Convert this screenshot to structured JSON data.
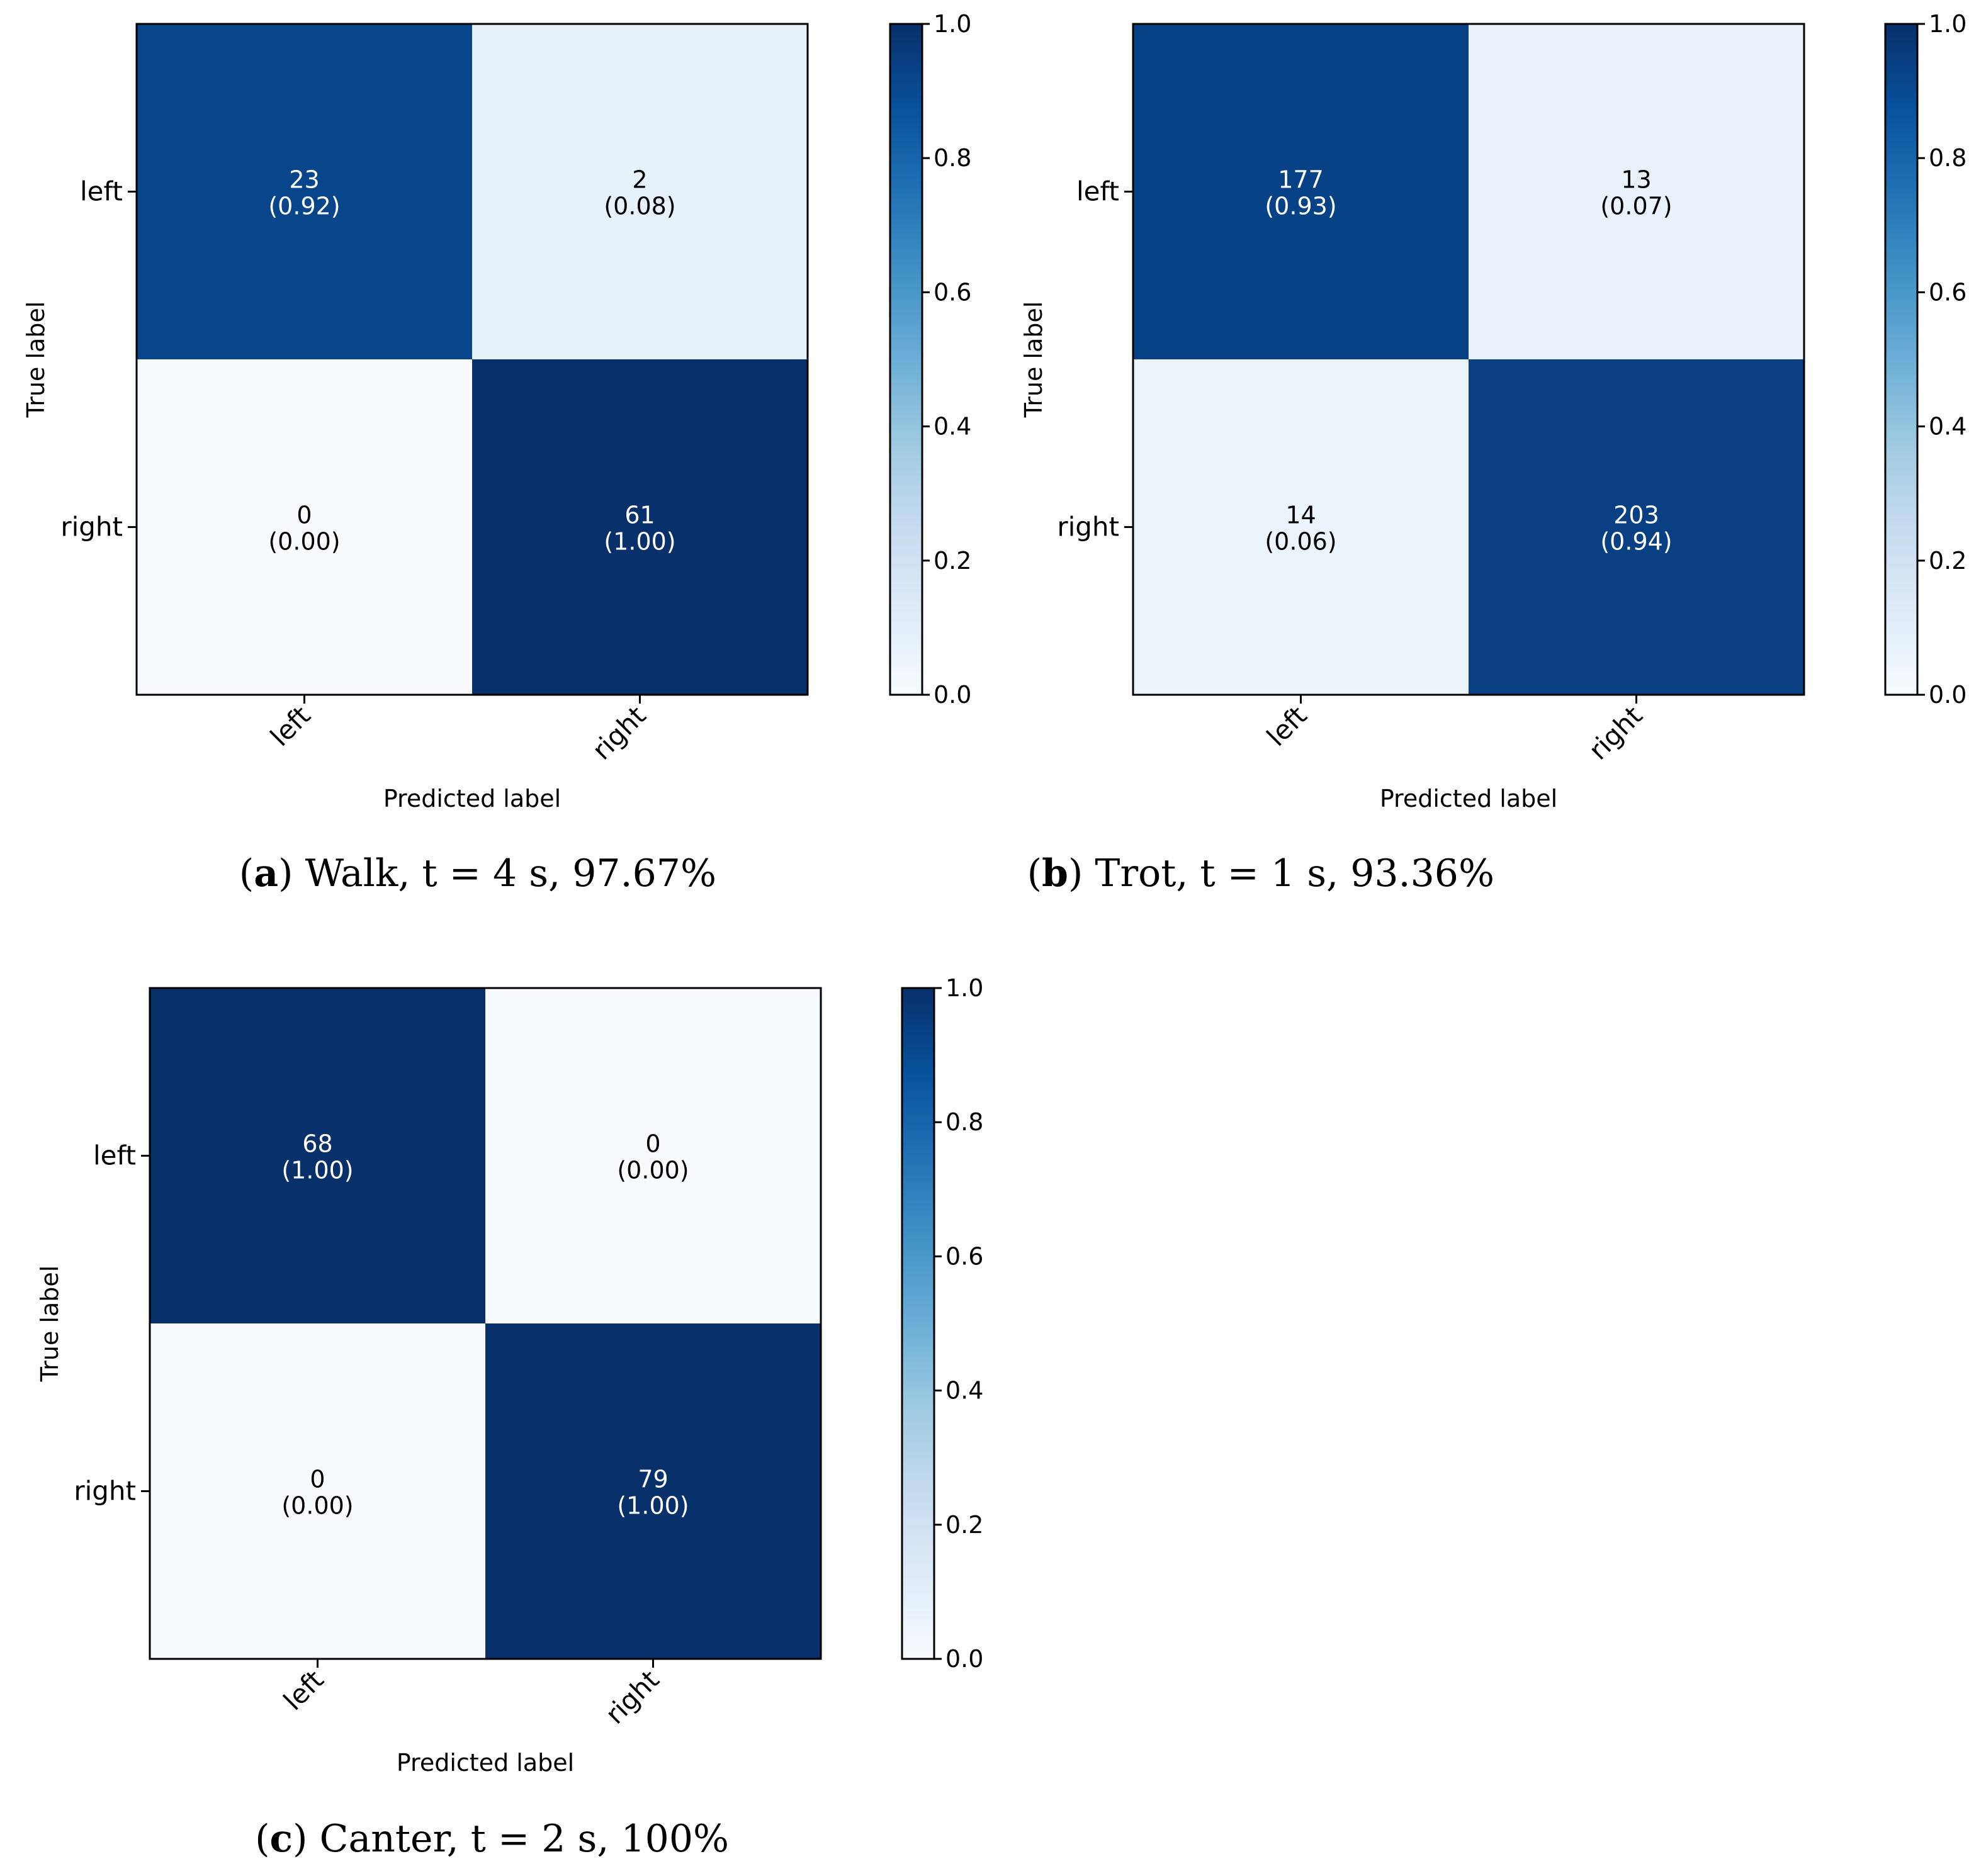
{
  "chart_data": [
    {
      "type": "heatmap",
      "panel_letter": "a",
      "caption": "Walk, t = 4 s, 97.67%",
      "xlabel": "Predicted label",
      "ylabel": "True label",
      "row_labels": [
        "left",
        "right"
      ],
      "col_labels": [
        "left",
        "right"
      ],
      "counts": [
        [
          23,
          2
        ],
        [
          0,
          61
        ]
      ],
      "count_labels": [
        [
          "23",
          "2"
        ],
        [
          "0",
          "61"
        ]
      ],
      "normalized": [
        [
          0.92,
          0.08
        ],
        [
          0.0,
          1.0
        ]
      ],
      "normalized_labels": [
        [
          "(0.92)",
          "(0.08)"
        ],
        [
          "(0.00)",
          "(1.00)"
        ]
      ],
      "colorbar": {
        "range": [
          0.0,
          1.0
        ],
        "ticks": [
          "0.0",
          "0.2",
          "0.4",
          "0.6",
          "0.8",
          "1.0"
        ],
        "colormap": "Blues"
      }
    },
    {
      "type": "heatmap",
      "panel_letter": "b",
      "caption": "Trot, t = 1 s, 93.36%",
      "xlabel": "Predicted label",
      "ylabel": "True label",
      "row_labels": [
        "left",
        "right"
      ],
      "col_labels": [
        "left",
        "right"
      ],
      "counts": [
        [
          177,
          13
        ],
        [
          14,
          203
        ]
      ],
      "count_labels": [
        [
          "177",
          "13"
        ],
        [
          "14",
          "203"
        ]
      ],
      "normalized": [
        [
          0.93,
          0.07
        ],
        [
          0.06,
          0.94
        ]
      ],
      "normalized_labels": [
        [
          "(0.93)",
          "(0.07)"
        ],
        [
          "(0.06)",
          "(0.94)"
        ]
      ],
      "colorbar": {
        "range": [
          0.0,
          1.0
        ],
        "ticks": [
          "0.0",
          "0.2",
          "0.4",
          "0.6",
          "0.8",
          "1.0"
        ],
        "colormap": "Blues"
      }
    },
    {
      "type": "heatmap",
      "panel_letter": "c",
      "caption": "Canter, t = 2 s, 100%",
      "xlabel": "Predicted label",
      "ylabel": "True label",
      "row_labels": [
        "left",
        "right"
      ],
      "col_labels": [
        "left",
        "right"
      ],
      "counts": [
        [
          68,
          0
        ],
        [
          0,
          79
        ]
      ],
      "count_labels": [
        [
          "68",
          "0"
        ],
        [
          "0",
          "79"
        ]
      ],
      "normalized": [
        [
          1.0,
          0.0
        ],
        [
          0.0,
          1.0
        ]
      ],
      "normalized_labels": [
        [
          "(1.00)",
          "(0.00)"
        ],
        [
          "(0.00)",
          "(1.00)"
        ]
      ],
      "colorbar": {
        "range": [
          0.0,
          1.0
        ],
        "ticks": [
          "0.0",
          "0.2",
          "0.4",
          "0.6",
          "0.8",
          "1.0"
        ],
        "colormap": "Blues"
      }
    }
  ],
  "colors": {
    "axis": "#000000",
    "text_dark": "#000000",
    "text_light": "#ffffff",
    "background": "#ffffff"
  }
}
